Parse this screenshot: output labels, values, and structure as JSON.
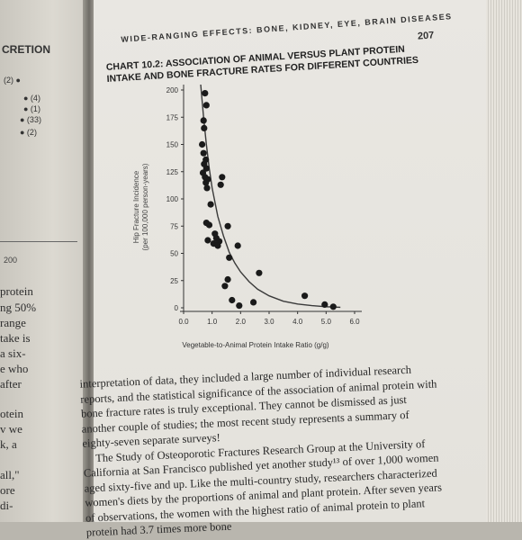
{
  "left_page": {
    "heading_fragment": "CRETION",
    "markers": [
      "(2) ●",
      "● (4)",
      "● (1)",
      "● (33)",
      "● (2)"
    ],
    "tick_label": "200",
    "text_fragments": [
      "protein",
      "ng 50%",
      "range",
      "take is",
      "a six-",
      "e who",
      "after",
      "otein",
      "v we",
      "k, a",
      "all,\"",
      "ore",
      "di-"
    ]
  },
  "right_page": {
    "running_head": "WIDE-RANGING EFFECTS: BONE, KIDNEY, EYE, BRAIN DISEASES",
    "page_number": "207",
    "chart_title_line1": "CHART 10.2: ASSOCIATION OF ANIMAL VERSUS PLANT PROTEIN",
    "chart_title_line2": "INTAKE AND BONE FRACTURE RATES FOR DIFFERENT COUNTRIES",
    "body_paragraph_1": "interpretation of data, they included a large number of individual research reports, and the statistical significance of the association of animal protein with bone fracture rates is truly exceptional. They cannot be dismissed as just another couple of studies; the most recent study represents a summary of eighty-seven separate surveys!",
    "body_paragraph_2": "The Study of Osteoporotic Fractures Research Group at the University of California at San Francisco published yet another study¹³ of over 1,000 women aged sixty-five and up. Like the multi-country study, researchers characterized women's diets by the proportions of animal and plant protein. After seven years of observations, the women with the highest ratio of animal protein to plant protein had 3.7 times more bone"
  },
  "chart_data": {
    "type": "scatter",
    "title": "CHART 10.2: ASSOCIATION OF ANIMAL VERSUS PLANT PROTEIN INTAKE AND BONE FRACTURE RATES FOR DIFFERENT COUNTRIES",
    "xlabel": "Vegetable-to-Animal Protein Intake Ratio (g/g)",
    "ylabel_line1": "Hip Fracture Incidence",
    "ylabel_line2": "(per 100,000 person-years)",
    "xlim": [
      0,
      6.0
    ],
    "ylim": [
      0,
      200
    ],
    "x_ticks": [
      0.0,
      1.0,
      2.0,
      3.0,
      4.0,
      5.0,
      6.0
    ],
    "x_tick_labels": [
      "0.0",
      "1.0",
      "2.0",
      "3.0",
      "4.0",
      "5.0",
      "6.0"
    ],
    "y_ticks": [
      0,
      25,
      50,
      75,
      100,
      125,
      150,
      175,
      200
    ],
    "y_tick_labels": [
      "0",
      "25",
      "50",
      "75",
      "100",
      "125",
      "150",
      "175",
      "200"
    ],
    "grid": false,
    "point_color": "#1a1a1a",
    "curve_color": "#3a3a3a",
    "points": [
      [
        0.75,
        197
      ],
      [
        0.8,
        186
      ],
      [
        0.7,
        172
      ],
      [
        0.72,
        165
      ],
      [
        0.65,
        150
      ],
      [
        0.7,
        142
      ],
      [
        0.78,
        136
      ],
      [
        0.72,
        132
      ],
      [
        0.8,
        128
      ],
      [
        0.68,
        124
      ],
      [
        0.75,
        120
      ],
      [
        0.85,
        118
      ],
      [
        0.78,
        115
      ],
      [
        0.82,
        110
      ],
      [
        1.35,
        120
      ],
      [
        1.3,
        113
      ],
      [
        0.95,
        95
      ],
      [
        0.8,
        78
      ],
      [
        0.9,
        76
      ],
      [
        1.55,
        75
      ],
      [
        1.1,
        68
      ],
      [
        1.15,
        64
      ],
      [
        1.25,
        61
      ],
      [
        0.85,
        62
      ],
      [
        1.05,
        59
      ],
      [
        1.9,
        57
      ],
      [
        1.2,
        57
      ],
      [
        1.6,
        46
      ],
      [
        1.55,
        26
      ],
      [
        1.45,
        20
      ],
      [
        2.65,
        32
      ],
      [
        1.7,
        7
      ],
      [
        2.45,
        5
      ],
      [
        1.95,
        2
      ],
      [
        4.25,
        11
      ],
      [
        4.95,
        3
      ],
      [
        5.25,
        1
      ]
    ],
    "fit_curve": [
      [
        0.6,
        205
      ],
      [
        0.7,
        175
      ],
      [
        0.8,
        150
      ],
      [
        0.9,
        128
      ],
      [
        1.0,
        110
      ],
      [
        1.2,
        84
      ],
      [
        1.4,
        66
      ],
      [
        1.6,
        51
      ],
      [
        1.8,
        41
      ],
      [
        2.0,
        33
      ],
      [
        2.3,
        24
      ],
      [
        2.6,
        17
      ],
      [
        3.0,
        11
      ],
      [
        3.5,
        6
      ],
      [
        4.0,
        3.5
      ],
      [
        4.5,
        2
      ],
      [
        5.0,
        1
      ],
      [
        5.5,
        0.5
      ]
    ]
  }
}
